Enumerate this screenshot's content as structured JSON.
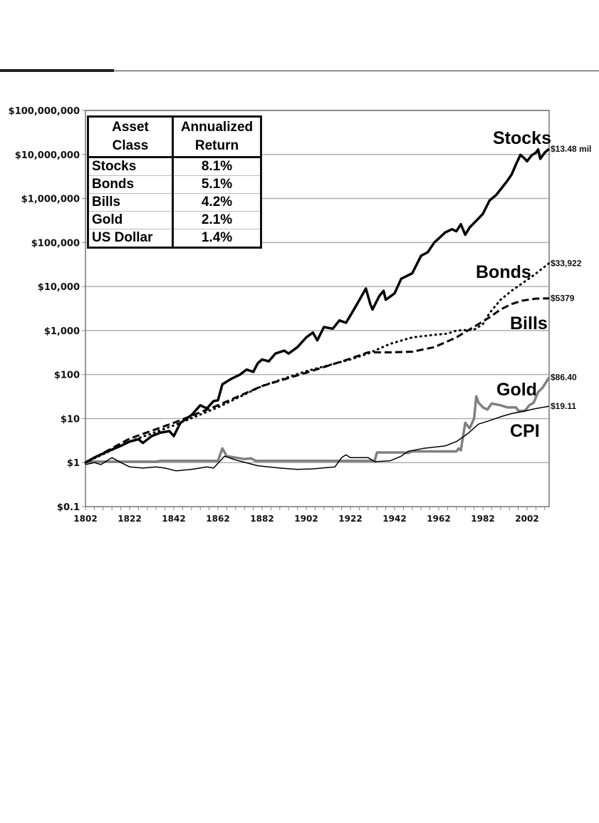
{
  "chart_data": {
    "type": "line",
    "yscale": "log",
    "ylim": [
      0.1,
      100000000
    ],
    "xlim": [
      1802,
      2012
    ],
    "y_ticks": [
      "$0.1",
      "$1",
      "$10",
      "$100",
      "$1,000",
      "$10,000",
      "$100,000",
      "$1,000,000",
      "$10,000,000",
      "$100,000,000"
    ],
    "x_ticks": [
      "1802",
      "1822",
      "1842",
      "1862",
      "1882",
      "1902",
      "1922",
      "1942",
      "1962",
      "1982",
      "2002"
    ],
    "grid": true,
    "series": [
      {
        "name": "Stocks",
        "style": "solid-thick",
        "color": "#000000",
        "end_label": "$13.48 mil",
        "points": [
          [
            1802,
            1
          ],
          [
            1806,
            1.3
          ],
          [
            1812,
            1.8
          ],
          [
            1818,
            2.4
          ],
          [
            1822,
            3
          ],
          [
            1826,
            3.4
          ],
          [
            1828,
            2.8
          ],
          [
            1832,
            4
          ],
          [
            1836,
            4.8
          ],
          [
            1840,
            5.2
          ],
          [
            1842,
            4
          ],
          [
            1845,
            8
          ],
          [
            1850,
            12
          ],
          [
            1854,
            20
          ],
          [
            1857,
            17
          ],
          [
            1860,
            25
          ],
          [
            1862,
            26
          ],
          [
            1864,
            60
          ],
          [
            1868,
            80
          ],
          [
            1872,
            100
          ],
          [
            1875,
            130
          ],
          [
            1878,
            115
          ],
          [
            1880,
            180
          ],
          [
            1882,
            220
          ],
          [
            1885,
            200
          ],
          [
            1888,
            300
          ],
          [
            1892,
            350
          ],
          [
            1894,
            300
          ],
          [
            1898,
            420
          ],
          [
            1902,
            700
          ],
          [
            1905,
            900
          ],
          [
            1907,
            600
          ],
          [
            1910,
            1200
          ],
          [
            1914,
            1100
          ],
          [
            1917,
            1700
          ],
          [
            1920,
            1500
          ],
          [
            1922,
            2200
          ],
          [
            1925,
            4000
          ],
          [
            1929,
            9000
          ],
          [
            1931,
            4000
          ],
          [
            1932,
            3000
          ],
          [
            1935,
            6000
          ],
          [
            1937,
            8000
          ],
          [
            1938,
            5000
          ],
          [
            1942,
            7000
          ],
          [
            1945,
            15000
          ],
          [
            1950,
            20000
          ],
          [
            1954,
            50000
          ],
          [
            1957,
            60000
          ],
          [
            1960,
            100000
          ],
          [
            1965,
            170000
          ],
          [
            1968,
            200000
          ],
          [
            1970,
            180000
          ],
          [
            1972,
            260000
          ],
          [
            1974,
            150000
          ],
          [
            1976,
            220000
          ],
          [
            1980,
            350000
          ],
          [
            1982,
            450000
          ],
          [
            1985,
            900000
          ],
          [
            1988,
            1200000
          ],
          [
            1990,
            1600000
          ],
          [
            1993,
            2500000
          ],
          [
            1995,
            3500000
          ],
          [
            1997,
            6000000
          ],
          [
            1999,
            9800000
          ],
          [
            2001,
            8000000
          ],
          [
            2002,
            7000000
          ],
          [
            2004,
            9500000
          ],
          [
            2006,
            11000000
          ],
          [
            2007,
            13000000
          ],
          [
            2008,
            8000000
          ],
          [
            2010,
            11000000
          ],
          [
            2012,
            13480000
          ]
        ]
      },
      {
        "name": "Bonds",
        "style": "dotted",
        "color": "#000000",
        "end_label": "$33,922",
        "points": [
          [
            1802,
            1
          ],
          [
            1822,
            3
          ],
          [
            1842,
            7
          ],
          [
            1862,
            18
          ],
          [
            1882,
            55
          ],
          [
            1902,
            120
          ],
          [
            1922,
            220
          ],
          [
            1930,
            300
          ],
          [
            1940,
            500
          ],
          [
            1950,
            700
          ],
          [
            1960,
            800
          ],
          [
            1966,
            850
          ],
          [
            1970,
            1000
          ],
          [
            1978,
            1050
          ],
          [
            1982,
            1400
          ],
          [
            1985,
            2500
          ],
          [
            1990,
            5000
          ],
          [
            1995,
            8000
          ],
          [
            2000,
            12000
          ],
          [
            2005,
            18000
          ],
          [
            2012,
            33922
          ]
        ]
      },
      {
        "name": "Bills",
        "style": "dashed",
        "color": "#000000",
        "end_label": "$5379",
        "points": [
          [
            1802,
            1
          ],
          [
            1822,
            3.5
          ],
          [
            1842,
            8
          ],
          [
            1862,
            20
          ],
          [
            1882,
            55
          ],
          [
            1902,
            110
          ],
          [
            1922,
            230
          ],
          [
            1930,
            320
          ],
          [
            1940,
            320
          ],
          [
            1950,
            330
          ],
          [
            1960,
            420
          ],
          [
            1970,
            700
          ],
          [
            1980,
            1400
          ],
          [
            1985,
            2000
          ],
          [
            1990,
            3000
          ],
          [
            1995,
            4000
          ],
          [
            2000,
            4800
          ],
          [
            2006,
            5300
          ],
          [
            2012,
            5379
          ]
        ]
      },
      {
        "name": "Gold",
        "style": "solid-gray",
        "color": "#808080",
        "end_label": "$86.40",
        "points": [
          [
            1802,
            1.05
          ],
          [
            1834,
            1.05
          ],
          [
            1836,
            1.1
          ],
          [
            1862,
            1.1
          ],
          [
            1864,
            2.1
          ],
          [
            1866,
            1.4
          ],
          [
            1870,
            1.3
          ],
          [
            1874,
            1.2
          ],
          [
            1877,
            1.25
          ],
          [
            1879,
            1.1
          ],
          [
            1933,
            1.1
          ],
          [
            1934,
            1.7
          ],
          [
            1946,
            1.7
          ],
          [
            1948,
            1.65
          ],
          [
            1950,
            1.8
          ],
          [
            1970,
            1.8
          ],
          [
            1971,
            2.1
          ],
          [
            1972,
            1.9
          ],
          [
            1974,
            8
          ],
          [
            1976,
            6
          ],
          [
            1978,
            10
          ],
          [
            1979,
            32
          ],
          [
            1980,
            23
          ],
          [
            1982,
            18
          ],
          [
            1984,
            16
          ],
          [
            1986,
            22
          ],
          [
            1990,
            20
          ],
          [
            1993,
            18
          ],
          [
            1997,
            18
          ],
          [
            1998,
            15
          ],
          [
            2001,
            15
          ],
          [
            2003,
            20
          ],
          [
            2005,
            23
          ],
          [
            2007,
            40
          ],
          [
            2009,
            50
          ],
          [
            2012,
            86.4
          ]
        ]
      },
      {
        "name": "CPI",
        "style": "solid-thin",
        "color": "#000000",
        "end_label": "$19.11",
        "points": [
          [
            1802,
            0.9
          ],
          [
            1806,
            1
          ],
          [
            1809,
            0.9
          ],
          [
            1814,
            1.3
          ],
          [
            1818,
            1
          ],
          [
            1822,
            0.8
          ],
          [
            1828,
            0.75
          ],
          [
            1834,
            0.8
          ],
          [
            1838,
            0.75
          ],
          [
            1843,
            0.65
          ],
          [
            1850,
            0.7
          ],
          [
            1857,
            0.8
          ],
          [
            1860,
            0.75
          ],
          [
            1865,
            1.4
          ],
          [
            1870,
            1.15
          ],
          [
            1880,
            0.85
          ],
          [
            1890,
            0.75
          ],
          [
            1898,
            0.7
          ],
          [
            1905,
            0.72
          ],
          [
            1915,
            0.8
          ],
          [
            1918,
            1.3
          ],
          [
            1920,
            1.5
          ],
          [
            1922,
            1.3
          ],
          [
            1930,
            1.3
          ],
          [
            1933,
            1.05
          ],
          [
            1940,
            1.1
          ],
          [
            1945,
            1.4
          ],
          [
            1948,
            1.8
          ],
          [
            1955,
            2.1
          ],
          [
            1965,
            2.4
          ],
          [
            1970,
            3
          ],
          [
            1975,
            4.5
          ],
          [
            1980,
            7.5
          ],
          [
            1985,
            9
          ],
          [
            1990,
            11
          ],
          [
            1995,
            13
          ],
          [
            2000,
            14.5
          ],
          [
            2005,
            16.5
          ],
          [
            2012,
            19.11
          ]
        ]
      }
    ],
    "annotations": [
      "Stocks",
      "Bonds",
      "Bills",
      "Gold",
      "CPI"
    ],
    "table": {
      "headers": [
        "Asset Class",
        "Annualized Return"
      ],
      "header_lines": [
        [
          "Asset",
          "Annualized"
        ],
        [
          "Class",
          "Return"
        ]
      ],
      "rows": [
        [
          "Stocks",
          "8.1%"
        ],
        [
          "Bonds",
          "5.1%"
        ],
        [
          "Bills",
          "4.2%"
        ],
        [
          "Gold",
          "2.1%"
        ],
        [
          "US Dollar",
          "1.4%"
        ]
      ]
    }
  }
}
